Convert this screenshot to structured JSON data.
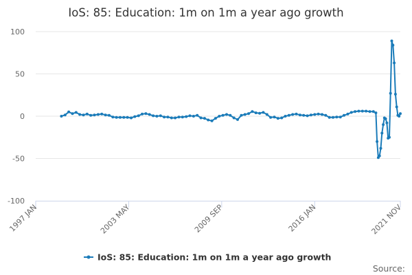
{
  "chart_data": {
    "type": "line",
    "title": "IoS: 85: Education: 1m on 1m a year ago growth",
    "xlabel": "",
    "ylabel": "",
    "ylim": [
      -100,
      100
    ],
    "yticks": [
      "100",
      "50",
      "0",
      "-50",
      "-100"
    ],
    "xticks": [
      "1997 JAN",
      "2003 MAY",
      "2009 SEP",
      "2016 JAN",
      "2021 NOV"
    ],
    "grid": true,
    "legend_position": "bottom",
    "color": "#1a7bb9",
    "series": [
      {
        "name": "IoS: 85: Education: 1m on 1m a year ago growth",
        "points": [
          [
            "1998-10",
            0
          ],
          [
            "1999-01",
            1.5
          ],
          [
            "1999-04",
            5
          ],
          [
            "1999-07",
            3
          ],
          [
            "1999-10",
            4.5
          ],
          [
            "2000-01",
            2
          ],
          [
            "2000-04",
            1.5
          ],
          [
            "2000-07",
            2.5
          ],
          [
            "2000-10",
            1
          ],
          [
            "2001-01",
            1.5
          ],
          [
            "2001-04",
            2
          ],
          [
            "2001-07",
            2.5
          ],
          [
            "2001-10",
            1.5
          ],
          [
            "2002-01",
            1
          ],
          [
            "2002-04",
            -1
          ],
          [
            "2002-07",
            -1.5
          ],
          [
            "2002-10",
            -1.5
          ],
          [
            "2003-01",
            -1.5
          ],
          [
            "2003-04",
            -1.5
          ],
          [
            "2003-07",
            -2
          ],
          [
            "2003-10",
            -0.5
          ],
          [
            "2004-01",
            0.5
          ],
          [
            "2004-04",
            2.5
          ],
          [
            "2004-07",
            3
          ],
          [
            "2004-10",
            2
          ],
          [
            "2005-01",
            0.5
          ],
          [
            "2005-04",
            0
          ],
          [
            "2005-07",
            0.5
          ],
          [
            "2005-10",
            -1
          ],
          [
            "2006-01",
            -1
          ],
          [
            "2006-04",
            -2
          ],
          [
            "2006-07",
            -2
          ],
          [
            "2006-10",
            -1
          ],
          [
            "2007-01",
            -1
          ],
          [
            "2007-04",
            -0.5
          ],
          [
            "2007-07",
            0.5
          ],
          [
            "2007-10",
            0
          ],
          [
            "2008-01",
            1
          ],
          [
            "2008-04",
            -2
          ],
          [
            "2008-07",
            -2.5
          ],
          [
            "2008-10",
            -4.5
          ],
          [
            "2009-01",
            -5.5
          ],
          [
            "2009-04",
            -2.5
          ],
          [
            "2009-07",
            0
          ],
          [
            "2009-10",
            1
          ],
          [
            "2010-01",
            2
          ],
          [
            "2010-04",
            1
          ],
          [
            "2010-07",
            -2
          ],
          [
            "2010-10",
            -4
          ],
          [
            "2011-01",
            1
          ],
          [
            "2011-04",
            2
          ],
          [
            "2011-07",
            3
          ],
          [
            "2011-10",
            5.5
          ],
          [
            "2012-01",
            4
          ],
          [
            "2012-04",
            3.5
          ],
          [
            "2012-07",
            4.5
          ],
          [
            "2012-10",
            2
          ],
          [
            "2013-01",
            -1.5
          ],
          [
            "2013-04",
            -1
          ],
          [
            "2013-07",
            -2.5
          ],
          [
            "2013-10",
            -2
          ],
          [
            "2014-01",
            0
          ],
          [
            "2014-04",
            1
          ],
          [
            "2014-07",
            2
          ],
          [
            "2014-10",
            2.5
          ],
          [
            "2015-01",
            1.5
          ],
          [
            "2015-04",
            1
          ],
          [
            "2015-07",
            0.5
          ],
          [
            "2015-10",
            1.5
          ],
          [
            "2016-01",
            2
          ],
          [
            "2016-04",
            2.5
          ],
          [
            "2016-07",
            2
          ],
          [
            "2016-10",
            1
          ],
          [
            "2017-01",
            -1.5
          ],
          [
            "2017-04",
            -1.5
          ],
          [
            "2017-07",
            -1
          ],
          [
            "2017-10",
            -1
          ],
          [
            "2018-01",
            1
          ],
          [
            "2018-04",
            2.5
          ],
          [
            "2018-07",
            4.5
          ],
          [
            "2018-10",
            5.5
          ],
          [
            "2019-01",
            6
          ],
          [
            "2019-04",
            6
          ],
          [
            "2019-07",
            6
          ],
          [
            "2019-10",
            5.5
          ],
          [
            "2020-01",
            5.5
          ],
          [
            "2020-03",
            4
          ],
          [
            "2020-04",
            -30
          ],
          [
            "2020-05",
            -49
          ],
          [
            "2020-06",
            -47
          ],
          [
            "2020-07",
            -38
          ],
          [
            "2020-08",
            -20
          ],
          [
            "2020-09",
            -10
          ],
          [
            "2020-10",
            -2
          ],
          [
            "2020-11",
            -3
          ],
          [
            "2020-12",
            -8
          ],
          [
            "2021-01",
            -26
          ],
          [
            "2021-02",
            -25
          ],
          [
            "2021-03",
            27
          ],
          [
            "2021-04",
            89
          ],
          [
            "2021-05",
            84
          ],
          [
            "2021-06",
            63
          ],
          [
            "2021-07",
            26
          ],
          [
            "2021-08",
            11
          ],
          [
            "2021-09",
            1
          ],
          [
            "2021-10",
            0
          ],
          [
            "2021-11",
            3
          ]
        ]
      }
    ]
  },
  "footer": {
    "source_label": "Source:"
  }
}
